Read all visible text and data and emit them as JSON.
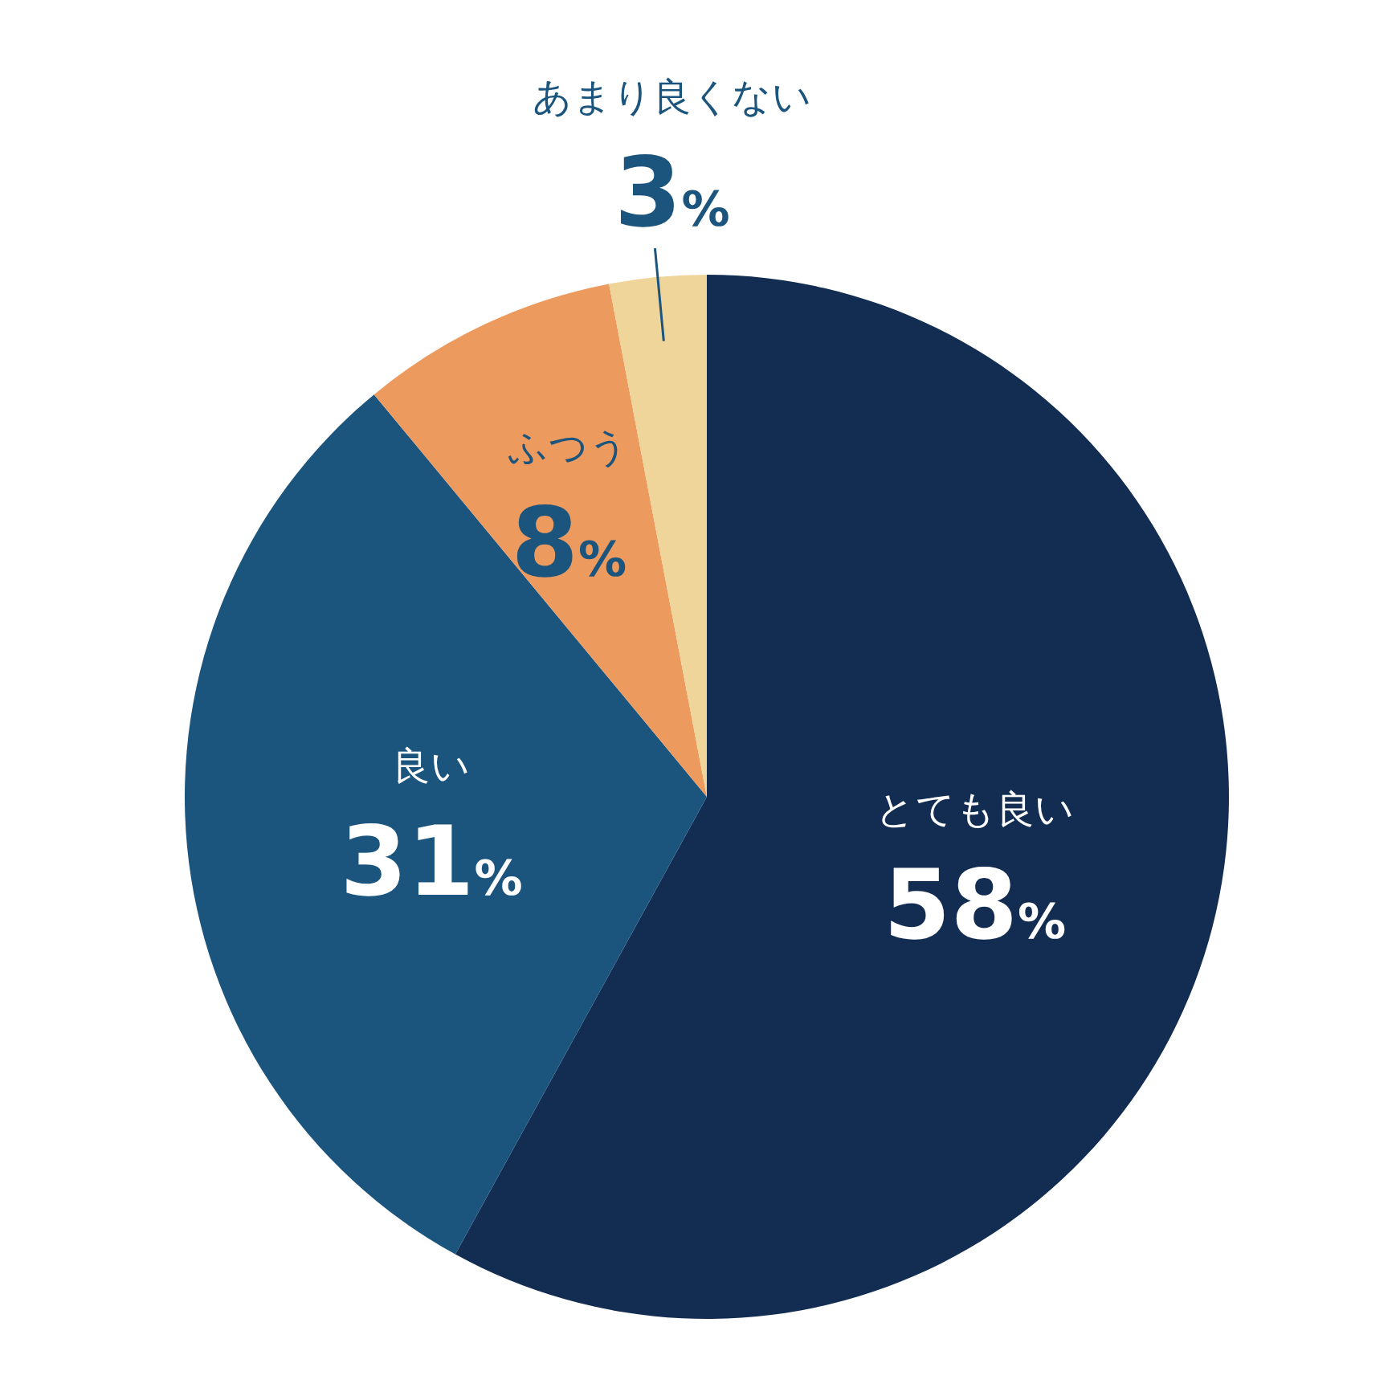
{
  "chart_data": {
    "type": "pie",
    "categories": [
      "とても良い",
      "良い",
      "ふつう",
      "あまり良くない"
    ],
    "values": [
      58,
      31,
      8,
      3
    ],
    "colors": [
      "#132d52",
      "#1b557d",
      "#ed9a5e",
      "#efd599"
    ],
    "value_labels": [
      "58%",
      "31%",
      "8%",
      "3%"
    ]
  }
}
